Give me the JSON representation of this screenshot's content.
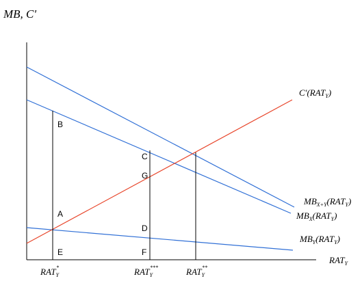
{
  "diagram": {
    "y_axis_label": "MB, C'",
    "x_axis_label": {
      "base": "RAT",
      "sub": "Y"
    },
    "colors": {
      "axes": "#000000",
      "mb_lines": "#2f6fd6",
      "cost_line": "#e8452a",
      "vertical_lines": "#000000"
    },
    "curves": {
      "cost": {
        "prefix": "C'(",
        "base": "RAT",
        "sub": "Y",
        "suffix": ")"
      },
      "mb_xy": {
        "base": "MB",
        "sub": "X+Y",
        "arg_open": "(",
        "arg_base": "RAT",
        "arg_sub": "Y",
        "arg_close": ")"
      },
      "mb_x": {
        "base": "MB",
        "sub": "X",
        "arg_open": "(",
        "arg_base": "RAT",
        "arg_sub": "Y",
        "arg_close": ")"
      },
      "mb_y": {
        "base": "MB",
        "sub": "Y",
        "arg_open": "(",
        "arg_base": "RAT",
        "arg_sub": "Y",
        "arg_close": ")"
      }
    },
    "points": {
      "A": "A",
      "B": "B",
      "C": "C",
      "D": "D",
      "E": "E",
      "F": "F",
      "G": "G"
    },
    "x_ticks": [
      {
        "base": "RAT",
        "sub": "Y",
        "sup": "*"
      },
      {
        "base": "RAT",
        "sub": "Y",
        "sup": "***"
      },
      {
        "base": "RAT",
        "sub": "Y",
        "sup": "**"
      }
    ]
  }
}
